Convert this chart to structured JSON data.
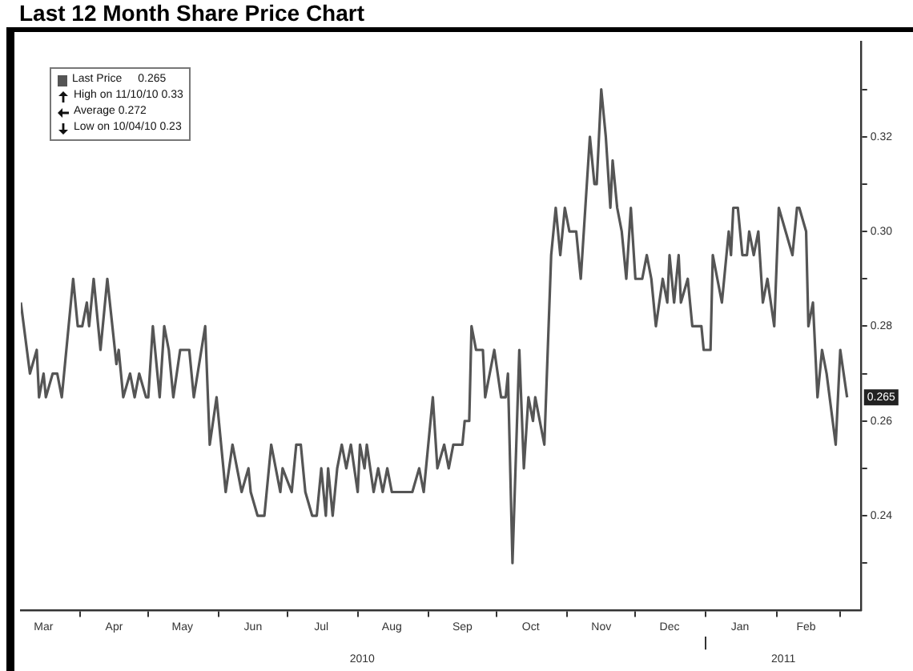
{
  "chart_data": {
    "type": "line",
    "title": "Last 12 Month Share Price Chart",
    "x": [
      "2010-03-06",
      "2010-03-10",
      "2010-03-13",
      "2010-03-14",
      "2010-03-16",
      "2010-03-17",
      "2010-03-20",
      "2010-03-22",
      "2010-03-24",
      "2010-03-29",
      "2010-03-31",
      "2010-04-02",
      "2010-04-04",
      "2010-04-05",
      "2010-04-07",
      "2010-04-10",
      "2010-04-13",
      "2010-04-17",
      "2010-04-18",
      "2010-04-20",
      "2010-04-23",
      "2010-04-25",
      "2010-04-27",
      "2010-04-30",
      "2010-05-01",
      "2010-05-03",
      "2010-05-06",
      "2010-05-08",
      "2010-05-10",
      "2010-05-12",
      "2010-05-15",
      "2010-05-19",
      "2010-05-21",
      "2010-05-26",
      "2010-05-28",
      "2010-05-31",
      "2010-06-04",
      "2010-06-07",
      "2010-06-09",
      "2010-06-11",
      "2010-06-14",
      "2010-06-15",
      "2010-06-18",
      "2010-06-21",
      "2010-06-24",
      "2010-06-28",
      "2010-06-29",
      "2010-07-03",
      "2010-07-05",
      "2010-07-07",
      "2010-07-09",
      "2010-07-12",
      "2010-07-14",
      "2010-07-16",
      "2010-07-18",
      "2010-07-19",
      "2010-07-21",
      "2010-07-23",
      "2010-07-25",
      "2010-07-27",
      "2010-07-29",
      "2010-08-01",
      "2010-08-02",
      "2010-08-04",
      "2010-08-05",
      "2010-08-08",
      "2010-08-10",
      "2010-08-12",
      "2010-08-14",
      "2010-08-16",
      "2010-08-25",
      "2010-08-28",
      "2010-08-30",
      "2010-09-03",
      "2010-09-05",
      "2010-09-08",
      "2010-09-10",
      "2010-09-12",
      "2010-09-16",
      "2010-09-17",
      "2010-09-19",
      "2010-09-20",
      "2010-09-22",
      "2010-09-25",
      "2010-09-26",
      "2010-09-30",
      "2010-10-03",
      "2010-10-05",
      "2010-10-06",
      "2010-10-08",
      "2010-10-11",
      "2010-10-13",
      "2010-10-15",
      "2010-10-17",
      "2010-10-18",
      "2010-10-20",
      "2010-10-22",
      "2010-10-25",
      "2010-10-27",
      "2010-10-29",
      "2010-10-31",
      "2010-11-02",
      "2010-11-05",
      "2010-11-07",
      "2010-11-11",
      "2010-11-13",
      "2010-11-14",
      "2010-11-16",
      "2010-11-18",
      "2010-11-20",
      "2010-11-21",
      "2010-11-23",
      "2010-11-25",
      "2010-11-27",
      "2010-11-29",
      "2010-12-01",
      "2010-12-04",
      "2010-12-06",
      "2010-12-08",
      "2010-12-10",
      "2010-12-13",
      "2010-12-15",
      "2010-12-16",
      "2010-12-18",
      "2010-12-20",
      "2010-12-21",
      "2010-12-24",
      "2010-12-26",
      "2010-12-30",
      "2010-12-31",
      "2011-01-03",
      "2011-01-04",
      "2011-01-06",
      "2011-01-08",
      "2011-01-11",
      "2011-01-12",
      "2011-01-13",
      "2011-01-15",
      "2011-01-17",
      "2011-01-19",
      "2011-01-20",
      "2011-01-22",
      "2011-01-24",
      "2011-01-26",
      "2011-01-28",
      "2011-01-31",
      "2011-02-02",
      "2011-02-05",
      "2011-02-08",
      "2011-02-10",
      "2011-02-11",
      "2011-02-14",
      "2011-02-15",
      "2011-02-17",
      "2011-02-19",
      "2011-02-21",
      "2011-02-23",
      "2011-02-27",
      "2011-03-01",
      "2011-03-04"
    ],
    "series": [
      {
        "name": "Last Price",
        "color": "#555555",
        "values": [
          0.285,
          0.27,
          0.275,
          0.265,
          0.27,
          0.265,
          0.27,
          0.27,
          0.265,
          0.29,
          0.28,
          0.28,
          0.285,
          0.28,
          0.29,
          0.275,
          0.29,
          0.272,
          0.275,
          0.265,
          0.27,
          0.265,
          0.27,
          0.265,
          0.265,
          0.28,
          0.265,
          0.28,
          0.275,
          0.265,
          0.275,
          0.275,
          0.265,
          0.28,
          0.255,
          0.265,
          0.245,
          0.255,
          0.25,
          0.245,
          0.25,
          0.245,
          0.24,
          0.24,
          0.255,
          0.245,
          0.25,
          0.245,
          0.255,
          0.255,
          0.245,
          0.24,
          0.24,
          0.25,
          0.24,
          0.25,
          0.24,
          0.25,
          0.255,
          0.25,
          0.255,
          0.245,
          0.255,
          0.25,
          0.255,
          0.245,
          0.25,
          0.245,
          0.25,
          0.245,
          0.245,
          0.25,
          0.245,
          0.265,
          0.25,
          0.255,
          0.25,
          0.255,
          0.255,
          0.26,
          0.26,
          0.28,
          0.275,
          0.275,
          0.265,
          0.275,
          0.265,
          0.265,
          0.27,
          0.23,
          0.275,
          0.25,
          0.265,
          0.26,
          0.265,
          0.26,
          0.255,
          0.295,
          0.305,
          0.295,
          0.305,
          0.3,
          0.3,
          0.29,
          0.32,
          0.31,
          0.31,
          0.33,
          0.32,
          0.305,
          0.315,
          0.305,
          0.3,
          0.29,
          0.305,
          0.29,
          0.29,
          0.295,
          0.29,
          0.28,
          0.29,
          0.285,
          0.295,
          0.285,
          0.295,
          0.285,
          0.29,
          0.28,
          0.28,
          0.275,
          0.275,
          0.295,
          0.29,
          0.285,
          0.3,
          0.295,
          0.305,
          0.305,
          0.295,
          0.295,
          0.3,
          0.295,
          0.3,
          0.285,
          0.29,
          0.28,
          0.305,
          0.3,
          0.295,
          0.305,
          0.305,
          0.3,
          0.28,
          0.285,
          0.265,
          0.275,
          0.27,
          0.255,
          0.275,
          0.265
        ]
      }
    ],
    "xlim": [
      "2010-03-06",
      "2011-03-10"
    ],
    "xticks": [
      {
        "value": "2010-03-16",
        "label": "Mar"
      },
      {
        "value": "2010-04-01",
        "label": null
      },
      {
        "value": "2010-04-16",
        "label": "Apr"
      },
      {
        "value": "2010-05-01",
        "label": null
      },
      {
        "value": "2010-05-16",
        "label": "May"
      },
      {
        "value": "2010-06-01",
        "label": null
      },
      {
        "value": "2010-06-16",
        "label": "Jun"
      },
      {
        "value": "2010-07-01",
        "label": null
      },
      {
        "value": "2010-07-16",
        "label": "Jul"
      },
      {
        "value": "2010-08-01",
        "label": null
      },
      {
        "value": "2010-08-16",
        "label": "Aug"
      },
      {
        "value": "2010-09-01",
        "label": null
      },
      {
        "value": "2010-09-16",
        "label": "Sep"
      },
      {
        "value": "2010-10-01",
        "label": null
      },
      {
        "value": "2010-10-16",
        "label": "Oct"
      },
      {
        "value": "2010-11-01",
        "label": null
      },
      {
        "value": "2010-11-16",
        "label": "Nov"
      },
      {
        "value": "2010-12-01",
        "label": null
      },
      {
        "value": "2010-12-16",
        "label": "Dec"
      },
      {
        "value": "2011-01-01",
        "label": null
      },
      {
        "value": "2011-01-16",
        "label": "Jan"
      },
      {
        "value": "2011-02-01",
        "label": null
      },
      {
        "value": "2011-02-14",
        "label": "Feb"
      },
      {
        "value": "2011-03-01",
        "label": null
      }
    ],
    "x2lim": [
      "2010-03-06",
      "2011-03-10"
    ],
    "x2ticks": [
      {
        "value": "2010-08-03",
        "label": "2010"
      },
      {
        "value": "2011-01-01",
        "label": null
      },
      {
        "value": "2011-02-04",
        "label": "2011"
      }
    ],
    "ylim": [
      0.22,
      0.34
    ],
    "yticks": [
      {
        "value": 0.23,
        "label": null
      },
      0.24,
      {
        "value": 0.25,
        "label": null
      },
      0.26,
      {
        "value": 0.27,
        "label": null
      },
      0.28,
      {
        "value": 0.29,
        "label": null
      },
      {
        "value": 0.3,
        "label": "0.30"
      },
      {
        "value": 0.31,
        "label": null
      },
      0.32,
      {
        "value": 0.33,
        "label": null
      }
    ],
    "legend": "top left",
    "annotations": [
      {
        "text": "0.265",
        "y": 0.265
      },
      "High on 11/10/10 0.33",
      "Average 0.272",
      "Low on 10/04/10 0.23"
    ]
  }
}
